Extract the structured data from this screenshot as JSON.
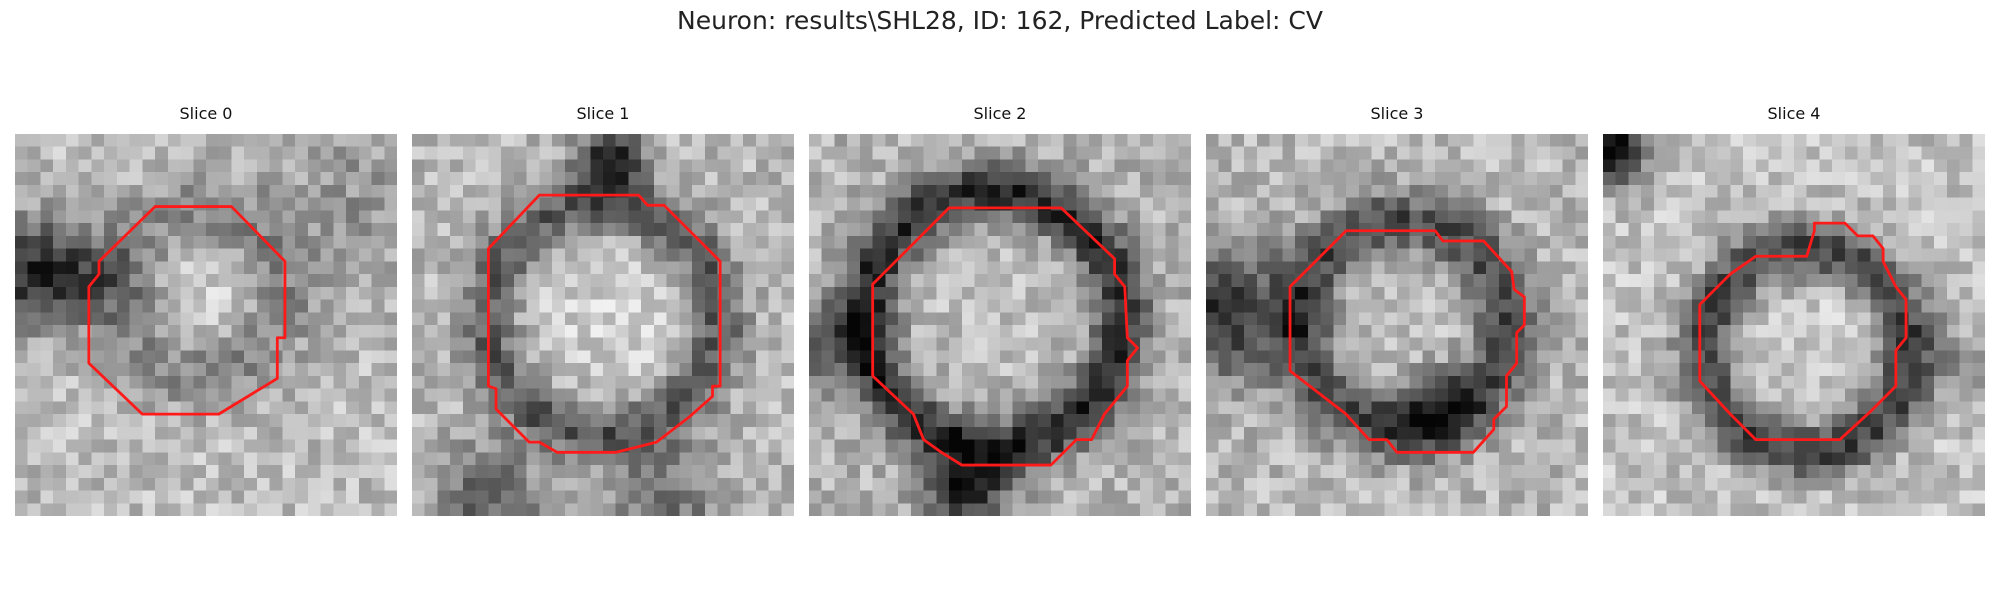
{
  "figure": {
    "suptitle": "Neuron: results\\SHL28, ID: 162, Predicted Label: CV"
  },
  "contour_color": "#ff1a1a",
  "panels": [
    {
      "title": "Slice 0"
    },
    {
      "title": "Slice 1"
    },
    {
      "title": "Slice 2"
    },
    {
      "title": "Slice 3"
    },
    {
      "title": "Slice 4"
    }
  ]
}
